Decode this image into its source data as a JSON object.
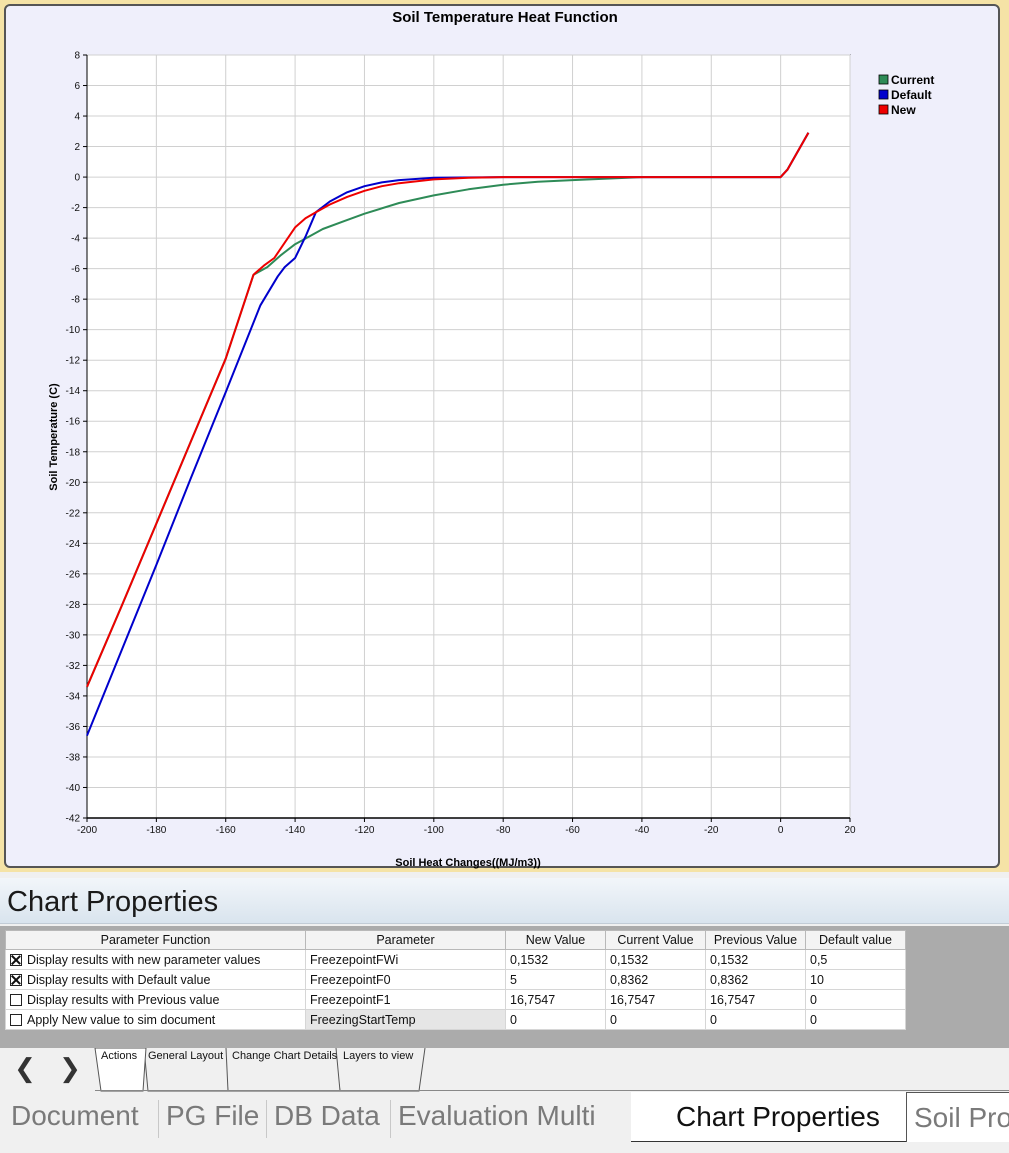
{
  "chart_data": {
    "type": "line",
    "title": "Soil Temperature Heat Function",
    "xlabel": "Soil Heat Changes((MJ/m3))",
    "ylabel": "Soil Temperature (C)",
    "xlim": [
      -200,
      20
    ],
    "ylim": [
      -42,
      8
    ],
    "xticks": [
      -200,
      -180,
      -160,
      -140,
      -120,
      -100,
      -80,
      -60,
      -40,
      -20,
      0,
      20
    ],
    "yticks": [
      8,
      6,
      4,
      2,
      0,
      -2,
      -4,
      -6,
      -8,
      -10,
      -12,
      -14,
      -16,
      -18,
      -20,
      -22,
      -24,
      -26,
      -28,
      -30,
      -32,
      -34,
      -36,
      -38,
      -40,
      -42
    ],
    "grid": true,
    "legend_position": "top-right",
    "series": [
      {
        "name": "Current",
        "color": "#2e8b57",
        "points": [
          [
            -200,
            -33.4
          ],
          [
            -190,
            -28.1
          ],
          [
            -180,
            -22.7
          ],
          [
            -170,
            -17.3
          ],
          [
            -160,
            -11.9
          ],
          [
            -152,
            -6.4
          ],
          [
            -148,
            -5.9
          ],
          [
            -144,
            -5.1
          ],
          [
            -140,
            -4.4
          ],
          [
            -136,
            -3.9
          ],
          [
            -132,
            -3.4
          ],
          [
            -126,
            -2.9
          ],
          [
            -120,
            -2.4
          ],
          [
            -110,
            -1.7
          ],
          [
            -100,
            -1.2
          ],
          [
            -90,
            -0.8
          ],
          [
            -80,
            -0.5
          ],
          [
            -70,
            -0.3
          ],
          [
            -60,
            -0.2
          ],
          [
            -50,
            -0.1
          ],
          [
            -40,
            0
          ],
          [
            -20,
            0
          ],
          [
            0,
            0
          ],
          [
            2,
            0.5
          ],
          [
            8,
            2.9
          ]
        ]
      },
      {
        "name": "Default",
        "color": "#0000cc",
        "points": [
          [
            -200,
            -36.6
          ],
          [
            -190,
            -31.0
          ],
          [
            -180,
            -25.4
          ],
          [
            -170,
            -19.7
          ],
          [
            -160,
            -14.1
          ],
          [
            -150,
            -8.4
          ],
          [
            -145,
            -6.5
          ],
          [
            -143,
            -5.9
          ],
          [
            -140,
            -5.3
          ],
          [
            -137,
            -3.9
          ],
          [
            -134,
            -2.3
          ],
          [
            -130,
            -1.6
          ],
          [
            -125,
            -1.0
          ],
          [
            -120,
            -0.6
          ],
          [
            -115,
            -0.35
          ],
          [
            -110,
            -0.2
          ],
          [
            -100,
            -0.05
          ],
          [
            -80,
            0
          ],
          [
            -40,
            0
          ],
          [
            0,
            0
          ],
          [
            2,
            0.5
          ],
          [
            8,
            2.9
          ]
        ]
      },
      {
        "name": "New",
        "color": "#ee0000",
        "points": [
          [
            -200,
            -33.4
          ],
          [
            -190,
            -28.1
          ],
          [
            -180,
            -22.7
          ],
          [
            -170,
            -17.3
          ],
          [
            -160,
            -11.9
          ],
          [
            -152,
            -6.4
          ],
          [
            -149,
            -5.8
          ],
          [
            -146,
            -5.3
          ],
          [
            -143,
            -4.3
          ],
          [
            -140,
            -3.3
          ],
          [
            -137,
            -2.7
          ],
          [
            -134,
            -2.3
          ],
          [
            -130,
            -1.8
          ],
          [
            -125,
            -1.3
          ],
          [
            -120,
            -0.9
          ],
          [
            -115,
            -0.6
          ],
          [
            -110,
            -0.4
          ],
          [
            -100,
            -0.15
          ],
          [
            -90,
            -0.05
          ],
          [
            -80,
            0
          ],
          [
            -40,
            0
          ],
          [
            0,
            0
          ],
          [
            2,
            0.5
          ],
          [
            8,
            2.9
          ]
        ]
      }
    ]
  },
  "properties": {
    "title": "Chart Properties",
    "columns": [
      "Parameter Function",
      "Parameter",
      "New Value",
      "Current Value",
      "Previous Value",
      "Default value"
    ],
    "rows": [
      {
        "checked": true,
        "function": "Display results with new parameter values",
        "parameter": "FreezepointFWi",
        "new": "0,1532",
        "current": "0,1532",
        "previous": "0,1532",
        "default": "0,5"
      },
      {
        "checked": true,
        "function": "Display results with Default value",
        "parameter": "FreezepointF0",
        "new": "5",
        "current": "0,8362",
        "previous": "0,8362",
        "default": "10"
      },
      {
        "checked": false,
        "function": "Display results with Previous value",
        "parameter": "FreezepointF1",
        "new": "16,7547",
        "current": "16,7547",
        "previous": "16,7547",
        "default": "0"
      },
      {
        "checked": false,
        "function": "Apply New value to sim document",
        "parameter": "FreezingStartTemp",
        "new": "0",
        "current": "0",
        "previous": "0",
        "default": "0"
      }
    ]
  },
  "inner_tabs": {
    "prev_icon": "chevron-left-icon",
    "next_icon": "chevron-right-icon",
    "items": [
      "Actions",
      "General Layout",
      "Change Chart Details",
      "Layers to view"
    ],
    "active": "Actions"
  },
  "document_tabs": {
    "items": [
      "Document",
      "PG File",
      "DB Data",
      "Evaluation Multi"
    ],
    "active": "Chart Properties",
    "last": "Soil Pro"
  }
}
